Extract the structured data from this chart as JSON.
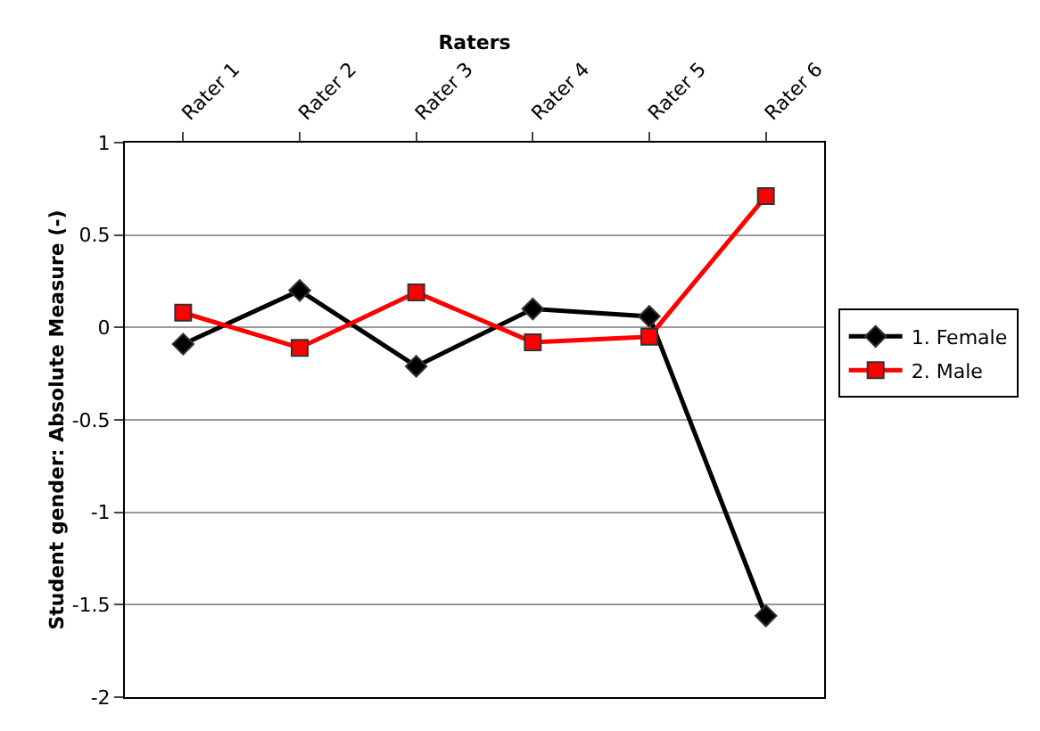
{
  "chart_data": {
    "type": "line",
    "xlabel": "Raters",
    "ylabel": "Student gender: Absolute Measure (-)",
    "categories": [
      "Rater 1",
      "Rater 2",
      "Rater 3",
      "Rater 4",
      "Rater 5",
      "Rater 6"
    ],
    "series": [
      {
        "name": "1. Female",
        "color": "#000000",
        "marker": "diamond",
        "values": [
          -0.09,
          0.2,
          -0.21,
          0.1,
          0.06,
          -1.56
        ]
      },
      {
        "name": "2. Male",
        "color": "#ff0000",
        "marker": "square",
        "values": [
          0.08,
          -0.11,
          0.19,
          -0.08,
          -0.05,
          0.71
        ]
      }
    ],
    "ylim": [
      -2,
      1
    ],
    "yticks": [
      -2,
      -1.5,
      -1,
      -0.5,
      0,
      0.5,
      1
    ],
    "grid": "y",
    "legend": "right",
    "line_style": "solid"
  }
}
